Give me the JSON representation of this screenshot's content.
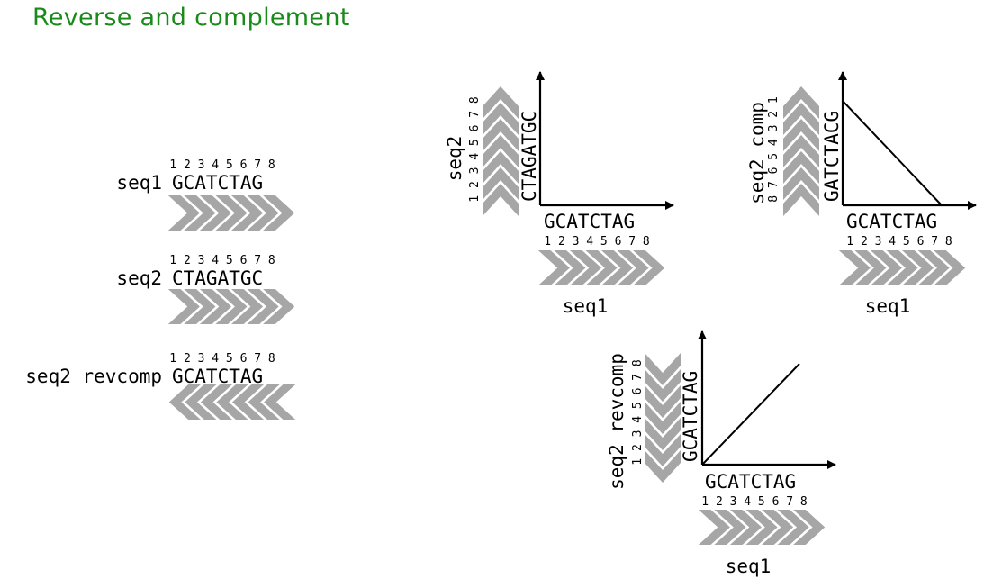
{
  "title": "Reverse and complement",
  "sequences": {
    "seq1": {
      "label": "seq1",
      "bases": "GCATCTAG",
      "positions": "1 2 3 4 5 6 7 8"
    },
    "seq2": {
      "label": "seq2",
      "bases": "CTAGATGC",
      "positions": "1 2 3 4 5 6 7 8"
    },
    "seq2_revcomp": {
      "label": "seq2 revcomp",
      "bases": "GCATCTAG",
      "positions": "1 2 3 4 5 6 7 8"
    }
  },
  "plots": {
    "plot1": {
      "x_label": "seq1",
      "x_bases": "GCATCTAG",
      "x_positions": "1 2 3 4 5 6 7 8",
      "y_label": "seq2",
      "y_bases": "CTAGATGC",
      "y_positions": "1 2 3 4 5 6 7 8"
    },
    "plot2": {
      "x_label": "seq1",
      "x_bases": "GCATCTAG",
      "x_positions": "1 2 3 4 5 6 7 8",
      "y_label": "seq2 comp",
      "y_bases": "GATCTACG",
      "y_positions": "8 7 6 5 4 3 2 1"
    },
    "plot3": {
      "x_label": "seq1",
      "x_bases": "GCATCTAG",
      "x_positions": "1 2 3 4 5 6 7 8",
      "y_label": "seq2 revcomp",
      "y_bases": "GCATCTAG",
      "y_positions": "1 2 3 4 5 6 7 8"
    }
  },
  "colors": {
    "title": "#1a8a1a",
    "chevron": "#a6a6a6",
    "line": "#000000"
  }
}
